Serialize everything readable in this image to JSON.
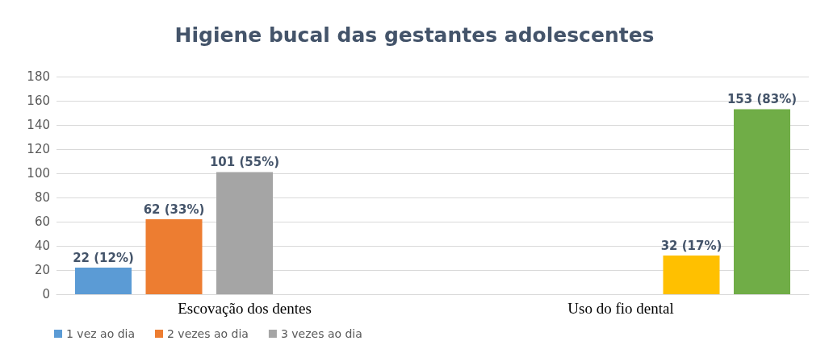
{
  "chart_data": {
    "type": "bar",
    "title": "Higiene bucal das gestantes adolescentes",
    "categories": [
      "Escovação dos dentes",
      "Uso do fio dental"
    ],
    "series": [
      {
        "name": "1 vez ao dia",
        "color": "#5b9bd5",
        "values": [
          22,
          null
        ],
        "value_labels": [
          "22 (12%)",
          null
        ]
      },
      {
        "name": "2 vezes ao dia",
        "color": "#ed7d31",
        "values": [
          62,
          null
        ],
        "value_labels": [
          "62 (33%)",
          null
        ]
      },
      {
        "name": "3 vezes ao dia",
        "color": "#a5a5a5",
        "values": [
          101,
          null
        ],
        "value_labels": [
          "101 (55%)",
          null
        ]
      },
      {
        "color": "#ffc000",
        "values": [
          null,
          32
        ],
        "value_labels": [
          null,
          "32 (17%)"
        ]
      },
      {
        "color": "#70ad47",
        "values": [
          null,
          153
        ],
        "value_labels": [
          null,
          "153 (83%)"
        ]
      }
    ],
    "ylim": [
      0,
      180
    ],
    "yticks": [
      0,
      20,
      40,
      60,
      80,
      100,
      120,
      140,
      160,
      180
    ],
    "grid": "y",
    "legend": "bottom left"
  }
}
